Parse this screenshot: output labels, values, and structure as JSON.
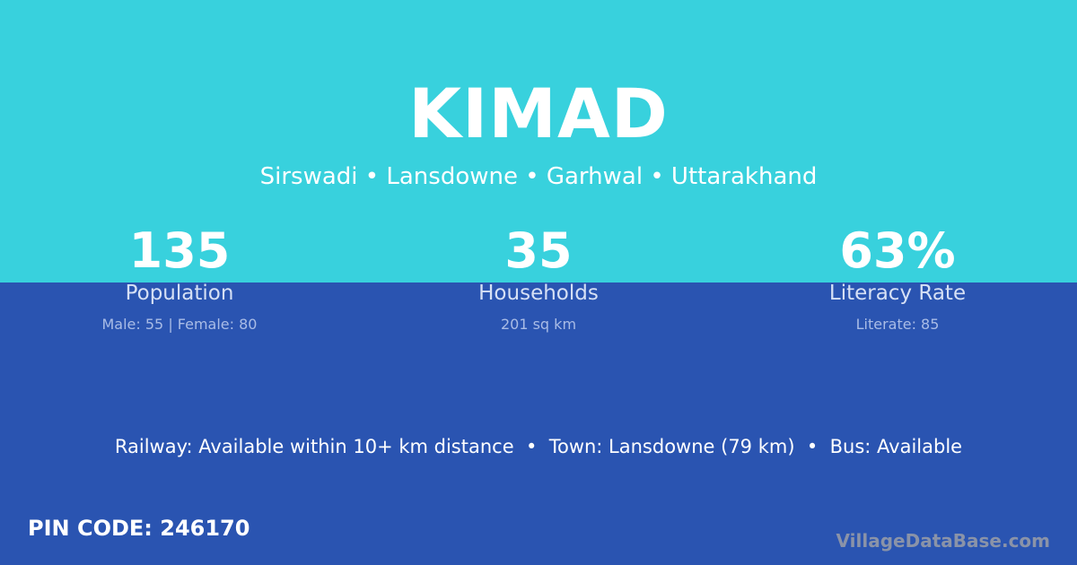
{
  "village": "KIMAD",
  "location": "Sirswadi • Lansdowne • Garhwal • Uttarakhand",
  "stats": [
    {
      "value": "135",
      "label": "Population",
      "detail": "Male: 55 | Female: 80"
    },
    {
      "value": "35",
      "label": "Households",
      "detail": "201 sq km"
    },
    {
      "value": "63%",
      "label": "Literacy Rate",
      "detail": "Literate: 85"
    }
  ],
  "facilities": "Railway: Available within 10+ km distance  •  Town: Lansdowne (79 km)  •  Bus: Available",
  "pin_code": "PIN CODE: 246170",
  "brand": "VillageDataBase.com",
  "colors": {
    "top": "#38d1dd",
    "bottom": "#2a54b1"
  }
}
